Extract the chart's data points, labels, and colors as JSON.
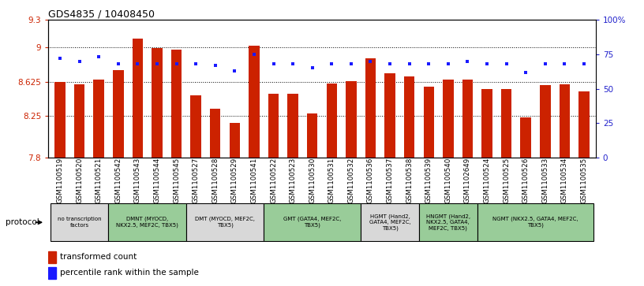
{
  "title": "GDS4835 / 10408450",
  "samples": [
    "GSM1100519",
    "GSM1100520",
    "GSM1100521",
    "GSM1100542",
    "GSM1100543",
    "GSM1100544",
    "GSM1100545",
    "GSM1100527",
    "GSM1100528",
    "GSM1100529",
    "GSM1100541",
    "GSM1100522",
    "GSM1100523",
    "GSM1100530",
    "GSM1100531",
    "GSM1100532",
    "GSM1100536",
    "GSM1100537",
    "GSM1100538",
    "GSM1100539",
    "GSM1100540",
    "GSM1102649",
    "GSM1100524",
    "GSM1100525",
    "GSM1100526",
    "GSM1100533",
    "GSM1100534",
    "GSM1100535"
  ],
  "bar_values": [
    8.625,
    8.595,
    8.65,
    8.75,
    9.1,
    8.99,
    8.98,
    8.48,
    8.33,
    8.18,
    9.02,
    8.49,
    8.49,
    8.28,
    8.61,
    8.63,
    8.88,
    8.72,
    8.68,
    8.57,
    8.65,
    8.65,
    8.55,
    8.55,
    8.24,
    8.59,
    8.6,
    8.52
  ],
  "dot_values": [
    72,
    70,
    73,
    68,
    68,
    68,
    68,
    68,
    67,
    63,
    75,
    68,
    68,
    65,
    68,
    68,
    70,
    68,
    68,
    68,
    68,
    70,
    68,
    68,
    62,
    68,
    68,
    68
  ],
  "ylim_left": [
    7.8,
    9.3
  ],
  "ylim_right": [
    0,
    100
  ],
  "yticks_left": [
    7.8,
    8.25,
    8.625,
    9.0,
    9.3
  ],
  "ytick_labels_left": [
    "7.8",
    "8.25",
    "8.625",
    "9",
    "9.3"
  ],
  "yticks_right": [
    0,
    25,
    50,
    75,
    100
  ],
  "ytick_labels_right": [
    "0",
    "25",
    "50",
    "75",
    "100%"
  ],
  "hlines": [
    8.25,
    8.625,
    9.0
  ],
  "bar_color": "#cc2200",
  "dot_color": "#1a1aff",
  "protocol_groups": [
    {
      "label": "no transcription\nfactors",
      "start": 0,
      "end": 3,
      "color": "#d8d8d8"
    },
    {
      "label": "DMNT (MYOCD,\nNKX2.5, MEF2C, TBX5)",
      "start": 3,
      "end": 7,
      "color": "#99cc99"
    },
    {
      "label": "DMT (MYOCD, MEF2C,\nTBX5)",
      "start": 7,
      "end": 11,
      "color": "#d8d8d8"
    },
    {
      "label": "GMT (GATA4, MEF2C,\nTBX5)",
      "start": 11,
      "end": 16,
      "color": "#99cc99"
    },
    {
      "label": "HGMT (Hand2,\nGATA4, MEF2C,\nTBX5)",
      "start": 16,
      "end": 19,
      "color": "#d8d8d8"
    },
    {
      "label": "HNGMT (Hand2,\nNKX2.5, GATA4,\nMEF2C, TBX5)",
      "start": 19,
      "end": 22,
      "color": "#99cc99"
    },
    {
      "label": "NGMT (NKX2.5, GATA4, MEF2C,\nTBX5)",
      "start": 22,
      "end": 28,
      "color": "#99cc99"
    }
  ],
  "bar_width": 0.55,
  "bar_color_str": "#cc2200",
  "dot_color_str": "#1a1aff",
  "left_label_color": "#cc2200",
  "right_label_color": "#2222cc"
}
